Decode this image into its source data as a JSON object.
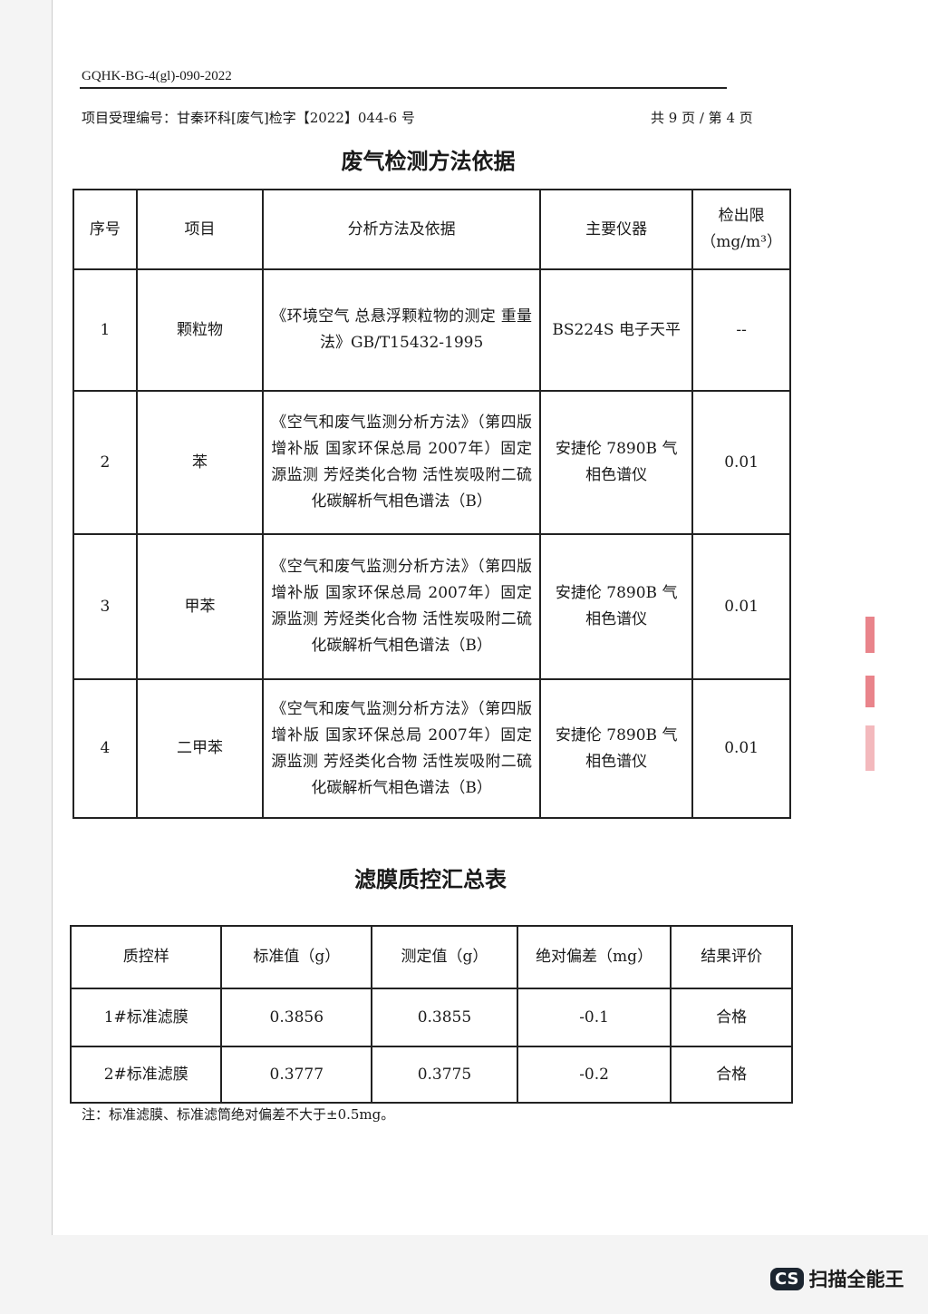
{
  "header": {
    "doc_code": "GQHK-BG-4(gl)-090-2022",
    "project_no": "项目受理编号：甘秦环科[废气]检字【2022】044-6 号",
    "page_info": "共 9 页 / 第 4 页"
  },
  "table1": {
    "title": "废气检测方法依据",
    "headers": [
      "序号",
      "项目",
      "分析方法及依据",
      "主要仪器",
      "检出限（mg/m³）"
    ],
    "rows": [
      [
        "1",
        "颗粒物",
        "《环境空气 总悬浮颗粒物的测定 重量法》GB/T15432-1995",
        "BS224S 电子天平",
        "--"
      ],
      [
        "2",
        "苯",
        "《空气和废气监测分析方法》（第四版 增补版 国家环保总局 2007年）固定源监测 芳烃类化合物 活性炭吸附二硫化碳解析气相色谱法（B）",
        "安捷伦 7890B 气相色谱仪",
        "0.01"
      ],
      [
        "3",
        "甲苯",
        "《空气和废气监测分析方法》（第四版 增补版 国家环保总局 2007年）固定源监测 芳烃类化合物 活性炭吸附二硫化碳解析气相色谱法（B）",
        "安捷伦 7890B 气相色谱仪",
        "0.01"
      ],
      [
        "4",
        "二甲苯",
        "《空气和废气监测分析方法》（第四版 增补版 国家环保总局 2007年）固定源监测 芳烃类化合物 活性炭吸附二硫化碳解析气相色谱法（B）",
        "安捷伦 7890B 气相色谱仪",
        "0.01"
      ]
    ]
  },
  "table2": {
    "title": "滤膜质控汇总表",
    "headers": [
      "质控样",
      "标准值（g）",
      "测定值（g）",
      "绝对偏差（mg）",
      "结果评价"
    ],
    "rows": [
      [
        "1#标准滤膜",
        "0.3856",
        "0.3855",
        "-0.1",
        "合格"
      ],
      [
        "2#标准滤膜",
        "0.3777",
        "0.3775",
        "-0.2",
        "合格"
      ]
    ],
    "note": "注：标准滤膜、标准滤筒绝对偏差不大于±0.5mg。"
  },
  "watermark": {
    "logo": "CS",
    "text": "扫描全能王"
  }
}
